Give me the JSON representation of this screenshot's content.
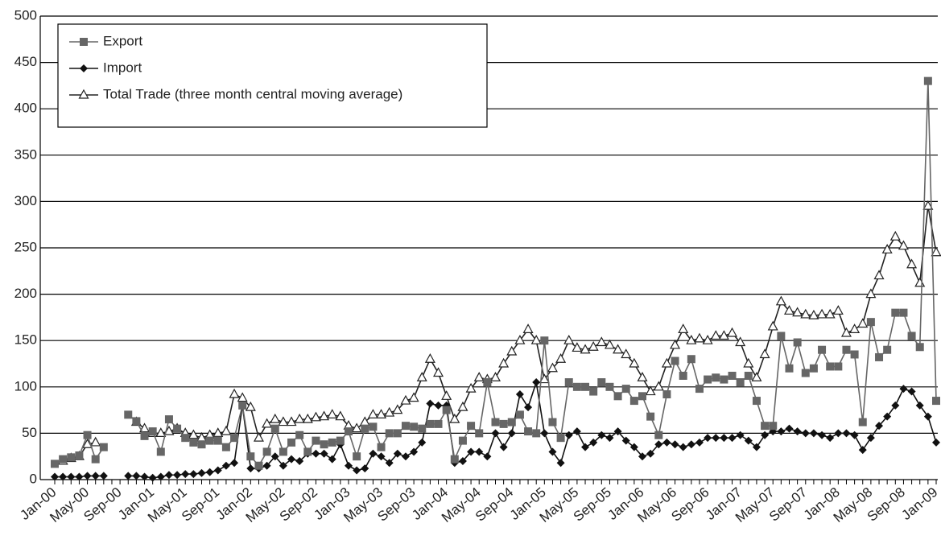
{
  "chart_data": {
    "type": "line",
    "categories": [
      "Jan-00",
      null,
      null,
      null,
      "May-00",
      null,
      null,
      null,
      "Sep-00",
      null,
      null,
      null,
      "Jan-01",
      null,
      null,
      null,
      "May-01",
      null,
      null,
      null,
      "Sep-01",
      null,
      null,
      null,
      "Jan-02",
      null,
      null,
      null,
      "May-02",
      null,
      null,
      null,
      "Sep-02",
      null,
      null,
      null,
      "Jan-03",
      null,
      null,
      null,
      "May-03",
      null,
      null,
      null,
      "Sep-03",
      null,
      null,
      null,
      "Jan-04",
      null,
      null,
      null,
      "May-04",
      null,
      null,
      null,
      "Sep-04",
      null,
      null,
      null,
      "Jan-05",
      null,
      null,
      null,
      "May-05",
      null,
      null,
      null,
      "Sep-05",
      null,
      null,
      null,
      "Jan-06",
      null,
      null,
      null,
      "May-06",
      null,
      null,
      null,
      "Sep-06",
      null,
      null,
      null,
      "Jan-07",
      null,
      null,
      null,
      "May-07",
      null,
      null,
      null,
      "Sep-07",
      null,
      null,
      null,
      "Jan-08",
      null,
      null,
      null,
      "May-08",
      null,
      null,
      null,
      "Sep-08",
      null,
      null,
      null,
      "Jan-09"
    ],
    "series": [
      {
        "name": "Export",
        "color": "#666666",
        "marker": "square",
        "values": [
          17,
          22,
          24,
          26,
          48,
          22,
          35,
          null,
          null,
          70,
          63,
          47,
          52,
          30,
          65,
          55,
          45,
          40,
          38,
          42,
          42,
          35,
          45,
          80,
          25,
          15,
          30,
          55,
          30,
          40,
          48,
          30,
          42,
          38,
          40,
          42,
          52,
          25,
          55,
          57,
          35,
          50,
          50,
          58,
          57,
          55,
          60,
          60,
          75,
          22,
          42,
          58,
          50,
          105,
          62,
          60,
          62,
          70,
          52,
          50,
          150,
          62,
          45,
          105,
          100,
          100,
          95,
          105,
          100,
          90,
          98,
          85,
          90,
          68,
          48,
          92,
          128,
          112,
          130,
          98,
          108,
          110,
          108,
          112,
          105,
          112,
          85,
          58,
          58,
          155,
          120,
          148,
          115,
          120,
          140,
          122,
          122,
          140,
          135,
          62,
          170,
          132,
          140,
          180,
          180,
          155,
          143,
          430,
          85
        ]
      },
      {
        "name": "Import",
        "color": "#111111",
        "marker": "diamond",
        "values": [
          3,
          3,
          3,
          3,
          4,
          4,
          4,
          null,
          null,
          4,
          4,
          3,
          2,
          3,
          5,
          5,
          6,
          6,
          7,
          8,
          10,
          15,
          18,
          80,
          12,
          12,
          15,
          25,
          15,
          22,
          20,
          28,
          28,
          28,
          22,
          38,
          15,
          10,
          12,
          28,
          25,
          18,
          28,
          25,
          30,
          40,
          82,
          80,
          80,
          18,
          20,
          30,
          30,
          25,
          50,
          35,
          50,
          92,
          78,
          105,
          50,
          30,
          18,
          48,
          52,
          35,
          40,
          48,
          45,
          52,
          42,
          35,
          25,
          28,
          38,
          40,
          38,
          35,
          38,
          40,
          45,
          45,
          45,
          45,
          48,
          42,
          35,
          48,
          52,
          52,
          55,
          52,
          50,
          50,
          48,
          45,
          50,
          50,
          48,
          32,
          45,
          58,
          68,
          80,
          98,
          95,
          80,
          68,
          40
        ]
      },
      {
        "name": "Total Trade (three month central moving average)",
        "color": "#222222",
        "marker": "triangle",
        "values": [
          null,
          20,
          23,
          25,
          38,
          40,
          null,
          null,
          null,
          null,
          62,
          55,
          50,
          50,
          52,
          55,
          50,
          48,
          45,
          48,
          50,
          52,
          92,
          88,
          78,
          45,
          60,
          65,
          62,
          62,
          65,
          65,
          67,
          68,
          70,
          68,
          58,
          55,
          62,
          70,
          70,
          72,
          75,
          85,
          88,
          110,
          130,
          115,
          90,
          65,
          78,
          98,
          110,
          108,
          110,
          125,
          138,
          150,
          162,
          150,
          108,
          120,
          130,
          150,
          142,
          140,
          143,
          148,
          145,
          140,
          135,
          125,
          110,
          95,
          100,
          125,
          145,
          162,
          150,
          152,
          150,
          155,
          155,
          158,
          148,
          125,
          110,
          135,
          165,
          192,
          182,
          180,
          178,
          177,
          178,
          178,
          182,
          158,
          162,
          168,
          200,
          220,
          248,
          262,
          252,
          232,
          212,
          295,
          245
        ]
      }
    ],
    "ylim": [
      0,
      500
    ],
    "yticks": [
      0,
      50,
      100,
      150,
      200,
      250,
      300,
      350,
      400,
      450,
      500
    ],
    "grid": true,
    "legend": "upper left"
  }
}
